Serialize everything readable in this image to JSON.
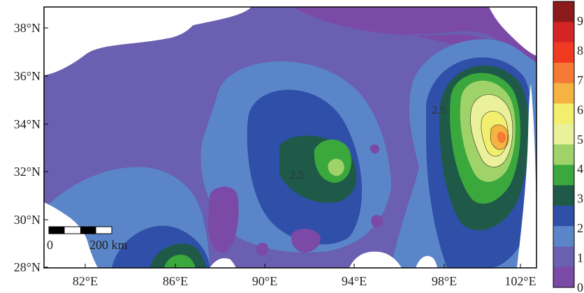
{
  "map": {
    "y_tick_labels": [
      "38°N",
      "36°N",
      "34°N",
      "32°N",
      "30°N",
      "28°N"
    ],
    "x_tick_labels": [
      "82°E",
      "86°E",
      "90°E",
      "94°E",
      "98°E",
      "102°E"
    ],
    "contour_labels": [
      "2.5",
      "2.5"
    ],
    "scale_bar": {
      "start_label": "0",
      "end_label": "200 km"
    }
  },
  "legend": {
    "labels": [
      "9",
      "8",
      "7",
      "6",
      "5",
      "4",
      "3",
      "2",
      "1",
      "0"
    ],
    "colors": [
      "#8b1a1a",
      "#d42424",
      "#f03a22",
      "#f57a35",
      "#f5b342",
      "#f2ee6e",
      "#eaf19a",
      "#9fd36a",
      "#3aa83c",
      "#1f5a48",
      "#2f4fa8",
      "#5a86c9",
      "#6a5fb0",
      "#7a4aa6"
    ]
  },
  "colors": {
    "background_low": "#6a5fb0",
    "level_1": "#5a86c9",
    "level_2": "#2f4fa8",
    "level_3": "#1f5a48",
    "level_3_5": "#3aa83c",
    "level_4": "#9fd36a",
    "level_5": "#eaf19a",
    "level_5_5": "#f2ee6e",
    "level_6": "#f5b342",
    "level_7": "#f57a35",
    "minimum": "#7a4aa6"
  }
}
